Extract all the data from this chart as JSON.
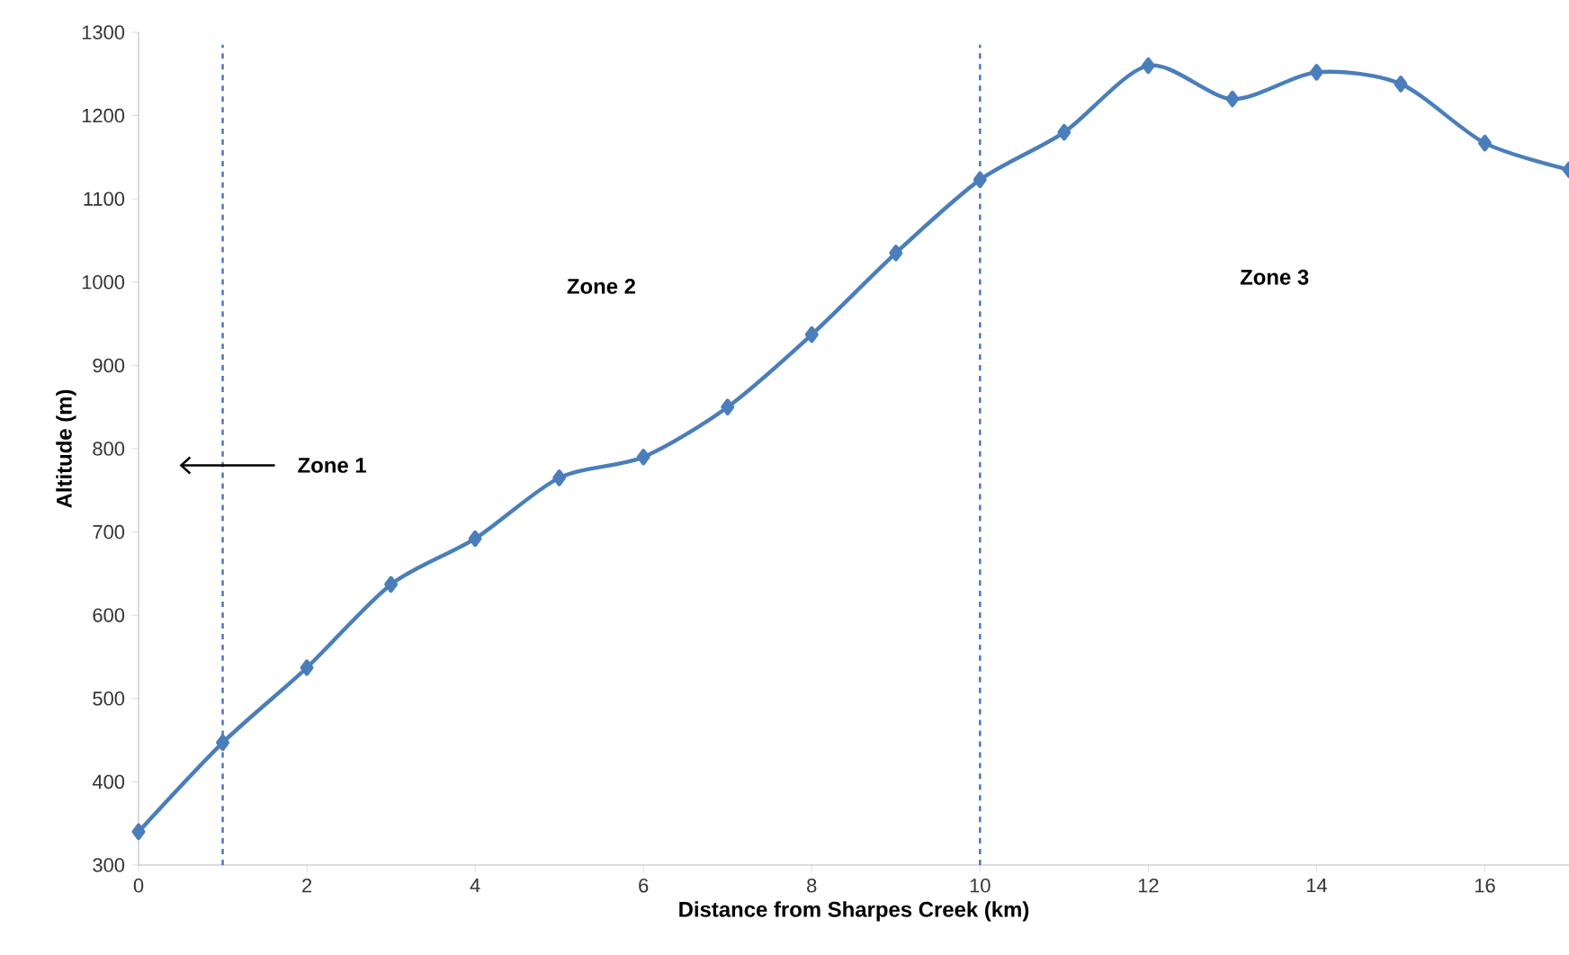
{
  "chart_data": {
    "type": "line",
    "xlabel": "Distance from Sharpes Creek (km)",
    "ylabel": "Altitude (m)",
    "x": [
      0,
      1,
      2,
      3,
      4,
      5,
      6,
      7,
      8,
      9,
      10,
      11,
      12,
      13,
      14,
      15,
      16,
      17
    ],
    "series": [
      {
        "color": "#4a7ebb",
        "values": [
          340,
          447,
          537,
          637,
          692,
          765,
          790,
          850,
          937,
          1035,
          1123,
          1180,
          1260,
          1220,
          1252,
          1238,
          1167,
          1135
        ]
      }
    ],
    "xlim": [
      0,
      17
    ],
    "ylim": [
      300,
      1300
    ],
    "xticks": [
      0,
      2,
      4,
      6,
      8,
      10,
      12,
      14,
      16
    ],
    "yticks": [
      300,
      400,
      500,
      600,
      700,
      800,
      900,
      1000,
      1100,
      1200,
      1300
    ],
    "marker": "diamond",
    "line_style": "solid",
    "grid": false,
    "ref_lines": [
      {
        "axis": "x",
        "value": 1,
        "color": "#4472c4",
        "line_style": "dashed"
      },
      {
        "axis": "x",
        "value": 10,
        "color": "#4472c4",
        "line_style": "dashed"
      }
    ],
    "annotations": [
      "Zone 1",
      "Zone 2",
      "Zone 3"
    ]
  }
}
